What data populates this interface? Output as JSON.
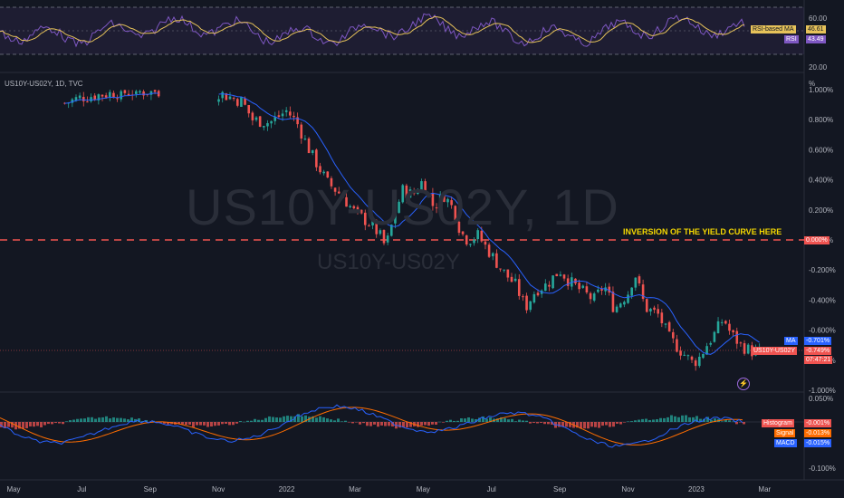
{
  "chart_title": "US10Y-US02Y, 1D, TVC",
  "watermark": {
    "main": "US10Y-US02Y, 1D",
    "sub": "US10Y-US02Y"
  },
  "annotation": "INVERSION OF THE YIELD CURVE HERE",
  "colors": {
    "background": "#131722",
    "up": "#26a69a",
    "down": "#ef5350",
    "ma": "#2962ff",
    "rsi": "#7e57c2",
    "rsi_ma": "#e6c25a",
    "signal": "#ff6d00",
    "macd": "#2962ff",
    "annotation": "#f5d800",
    "zero_line": "#ef5350"
  },
  "chart_data": [
    {
      "type": "line",
      "panel": "RSI",
      "y_ticks": [
        "60.00",
        "20.00"
      ],
      "series": [
        {
          "name": "RSI-based MA",
          "value": "46.61"
        },
        {
          "name": "RSI",
          "value": "43.49"
        }
      ]
    },
    {
      "type": "candlestick",
      "panel": "price",
      "unit": "%",
      "y_ticks": [
        "1.000%",
        "0.800%",
        "0.600%",
        "0.400%",
        "0.200%",
        "0.000%",
        "-0.200%",
        "-0.400%",
        "-0.600%",
        "-0.800%",
        "-1.000%"
      ],
      "ylim": [
        -1.0,
        1.0
      ],
      "x_ticks": [
        "May",
        "Jul",
        "Sep",
        "Nov",
        "2022",
        "Mar",
        "May",
        "Jul",
        "Sep",
        "Nov",
        "2023",
        "Mar"
      ],
      "x_tick_months": [
        0,
        2,
        4,
        6,
        8,
        10,
        12,
        14,
        16,
        18,
        20,
        22
      ],
      "x_range_months": [
        0,
        23
      ],
      "reference_line": {
        "value": 0.0,
        "label": "0.000%"
      },
      "close_points": [
        [
          1.5,
          0.91
        ],
        [
          2.0,
          0.95
        ],
        [
          3.0,
          0.98
        ],
        [
          4.2,
          0.99
        ],
        [
          6.0,
          0.98
        ],
        [
          6.7,
          0.92
        ],
        [
          7.0,
          0.8
        ],
        [
          7.5,
          0.78
        ],
        [
          8.0,
          0.86
        ],
        [
          8.3,
          0.78
        ],
        [
          8.7,
          0.58
        ],
        [
          9.2,
          0.38
        ],
        [
          9.6,
          0.3
        ],
        [
          10.0,
          0.18
        ],
        [
          10.5,
          0.1
        ],
        [
          10.75,
          0.02
        ],
        [
          10.9,
          -0.05
        ],
        [
          11.2,
          0.2
        ],
        [
          11.4,
          0.33
        ],
        [
          11.7,
          0.3
        ],
        [
          12.0,
          0.4
        ],
        [
          12.3,
          0.22
        ],
        [
          12.6,
          0.3
        ],
        [
          12.9,
          0.2
        ],
        [
          13.1,
          0.05
        ],
        [
          13.3,
          0.0
        ],
        [
          13.6,
          0.03
        ],
        [
          14.0,
          -0.1
        ],
        [
          14.3,
          -0.2
        ],
        [
          14.7,
          -0.3
        ],
        [
          15.0,
          -0.45
        ],
        [
          15.3,
          -0.33
        ],
        [
          15.6,
          -0.3
        ],
        [
          16.0,
          -0.2
        ],
        [
          16.3,
          -0.28
        ],
        [
          16.7,
          -0.35
        ],
        [
          17.0,
          -0.4
        ],
        [
          17.3,
          -0.3
        ],
        [
          17.6,
          -0.46
        ],
        [
          18.0,
          -0.35
        ],
        [
          18.2,
          -0.22
        ],
        [
          18.5,
          -0.45
        ],
        [
          18.9,
          -0.5
        ],
        [
          19.2,
          -0.65
        ],
        [
          19.6,
          -0.75
        ],
        [
          19.9,
          -0.82
        ],
        [
          20.1,
          -0.78
        ],
        [
          20.3,
          -0.7
        ],
        [
          20.55,
          -0.62
        ],
        [
          20.8,
          -0.52
        ],
        [
          21.0,
          -0.62
        ],
        [
          21.3,
          -0.7
        ],
        [
          21.6,
          -0.74
        ],
        [
          21.9,
          -0.75
        ]
      ],
      "series": [
        {
          "name": "MA",
          "value": "-0.701%"
        },
        {
          "name": "US10Y-US02Y",
          "value": "-0.749%",
          "countdown": "07:47:21"
        }
      ]
    },
    {
      "type": "bar",
      "panel": "MACD",
      "y_ticks": [
        "0.050%",
        "-0.100%"
      ],
      "series": [
        {
          "name": "Histogram",
          "value": "-0.001%"
        },
        {
          "name": "Signal",
          "value": "-0.013%"
        },
        {
          "name": "MACD",
          "value": "-0.015%"
        }
      ]
    }
  ]
}
